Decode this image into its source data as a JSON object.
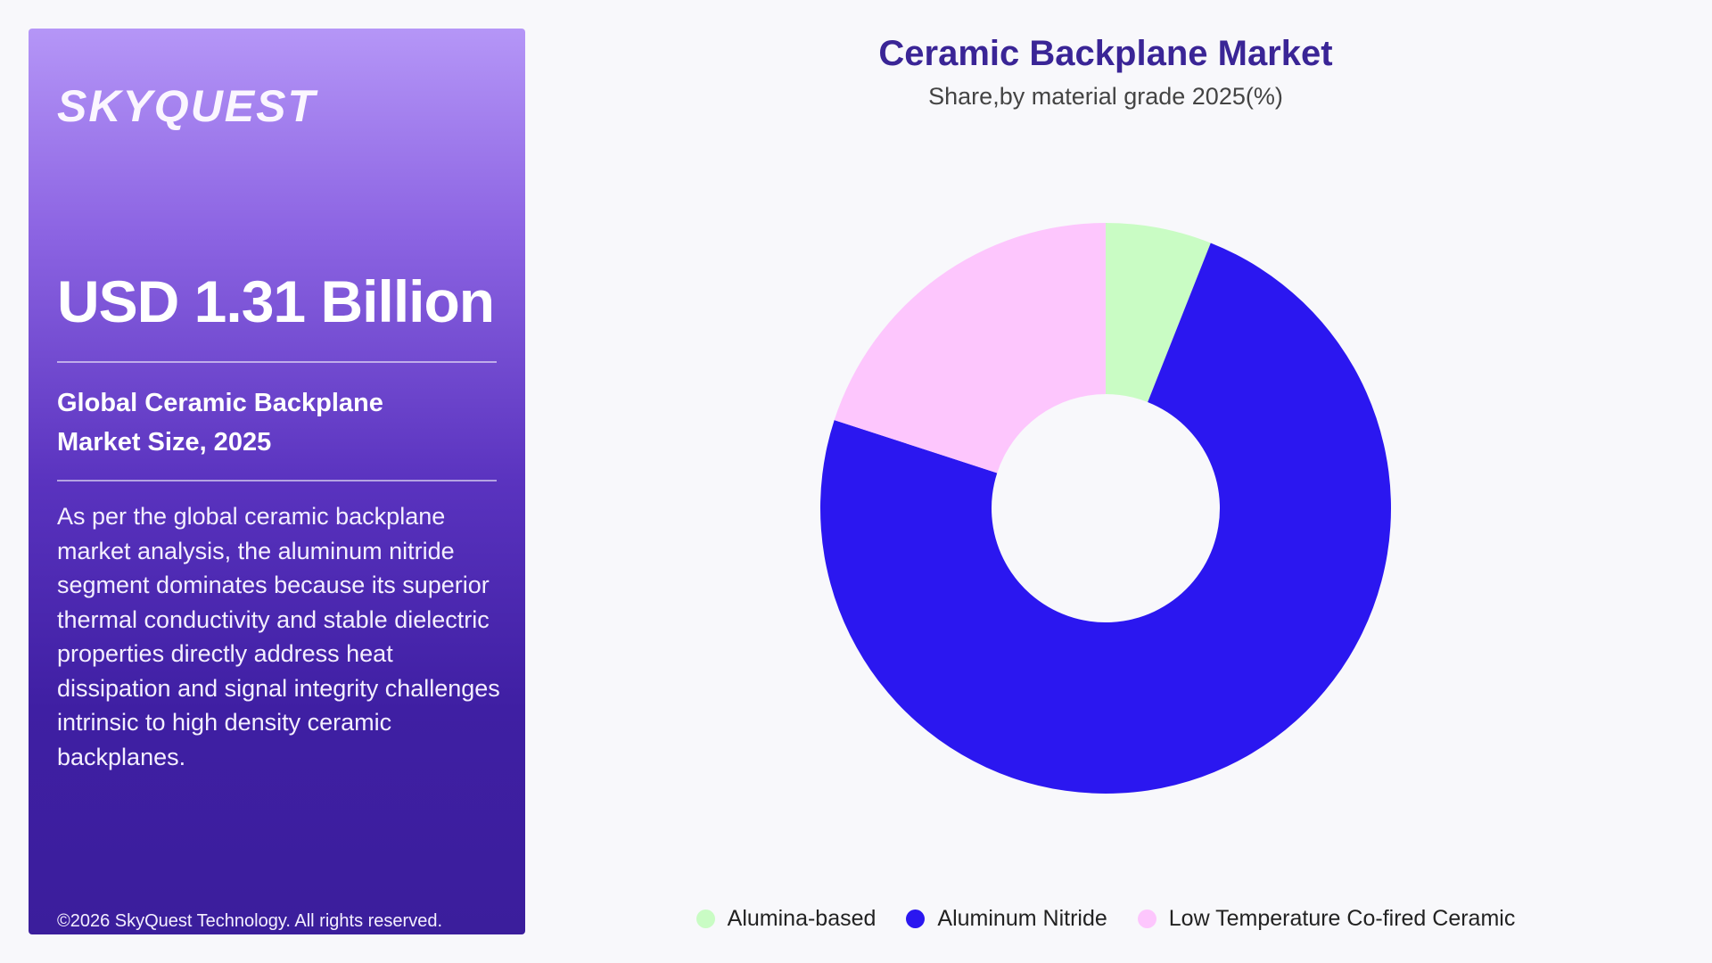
{
  "panel": {
    "logo": "SKYQUEST",
    "market_value": "USD 1.31 Billion",
    "subtitle_line1": "Global Ceramic Backplane",
    "subtitle_line2": "Market Size, 2025",
    "description": "As per the global ceramic backplane market analysis, the aluminum nitride segment dominates because its superior thermal conductivity and stable dielectric properties directly address heat dissipation and signal integrity challenges intrinsic to high density ceramic backplanes.",
    "copyright": "©2026 SkyQuest Technology. All rights reserved."
  },
  "colors": {
    "panel_top": "#b596f7",
    "panel_bottom": "#3b1e9c",
    "title": "#3a2596"
  },
  "chart_data": {
    "type": "pie",
    "title": "Ceramic Backplane Market",
    "subtitle": "Share,by material grade 2025(%)",
    "donut": true,
    "legend_position": "bottom",
    "categories": [
      "Alumina-based",
      "Aluminum Nitride",
      "Low Temperature Co-fired Ceramic"
    ],
    "values": [
      6,
      74,
      20
    ],
    "colors": [
      "#c9fcc4",
      "#2b17f0",
      "#fdc6fd"
    ]
  }
}
